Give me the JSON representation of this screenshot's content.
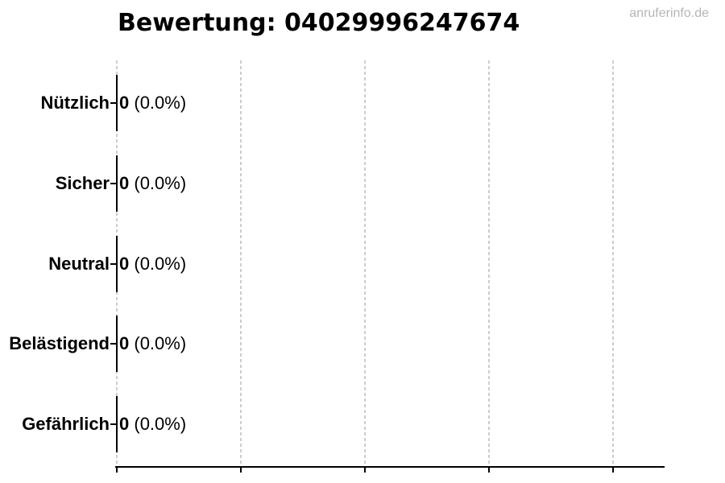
{
  "watermark": "anruferinfo.de",
  "chart_data": {
    "type": "bar",
    "orientation": "horizontal",
    "title": "Bewertung: 04029996247674",
    "categories": [
      "Nützlich",
      "Sicher",
      "Neutral",
      "Belästigend",
      "Gefährlich"
    ],
    "values": [
      0,
      0,
      0,
      0,
      0
    ],
    "value_labels": [
      {
        "count": "0",
        "percent": "(0.0%)"
      },
      {
        "count": "0",
        "percent": "(0.0%)"
      },
      {
        "count": "0",
        "percent": "(0.0%)"
      },
      {
        "count": "0",
        "percent": "(0.0%)"
      },
      {
        "count": "0",
        "percent": "(0.0%)"
      }
    ],
    "x_tick_labels": [],
    "x_tick_count": 5,
    "legend": false,
    "grid": {
      "axis": "x",
      "style": "dashed"
    },
    "colors": {
      "text": "#000000",
      "axis": "#000000",
      "grid": "#cdcdcd",
      "watermark": "#b5b5b5"
    }
  }
}
